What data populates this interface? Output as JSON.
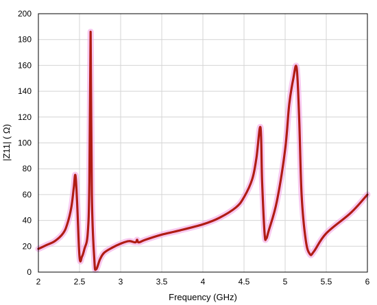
{
  "chart_data": {
    "type": "line",
    "title": "",
    "xlabel": "Frequency (GHz)",
    "ylabel": "|Z11| (  Ω)",
    "xlim": [
      2,
      6
    ],
    "ylim": [
      0,
      200
    ],
    "x_ticks": [
      "2",
      "2.5",
      "3",
      "3.5",
      "4",
      "4.5",
      "5",
      "5.5",
      "6"
    ],
    "y_ticks": [
      "0",
      "20",
      "40",
      "60",
      "80",
      "100",
      "120",
      "140",
      "160",
      "180",
      "200"
    ],
    "grid": true,
    "legend": "none",
    "colors": {
      "line": "#b01c14",
      "highlight": "#f3a6e6",
      "grid": "#d4d4d4"
    },
    "series": [
      {
        "x": [
          2.0,
          2.1,
          2.2,
          2.3,
          2.35,
          2.4,
          2.43,
          2.45,
          2.47,
          2.5,
          2.53,
          2.56,
          2.6,
          2.62,
          2.635,
          2.65,
          2.68,
          2.7,
          2.75,
          2.8,
          2.9,
          3.0,
          3.1,
          3.18,
          3.2,
          3.22,
          3.3,
          3.5,
          3.7,
          4.0,
          4.2,
          4.4,
          4.5,
          4.6,
          4.65,
          4.7,
          4.72,
          4.75,
          4.77,
          4.8,
          4.9,
          5.0,
          5.05,
          5.1,
          5.14,
          5.17,
          5.2,
          5.25,
          5.3,
          5.35,
          5.5,
          5.8,
          6.0
        ],
        "y": [
          18,
          21,
          24,
          30,
          37,
          50,
          65,
          75,
          55,
          12,
          12,
          18,
          30,
          70,
          186,
          60,
          10,
          2,
          10,
          15,
          19,
          22,
          24,
          23,
          25,
          23,
          25,
          29,
          32,
          37,
          42,
          50,
          58,
          72,
          88,
          112,
          70,
          30,
          26,
          32,
          55,
          95,
          130,
          150,
          158,
          120,
          60,
          25,
          14,
          16,
          30,
          46,
          60
        ]
      }
    ]
  }
}
